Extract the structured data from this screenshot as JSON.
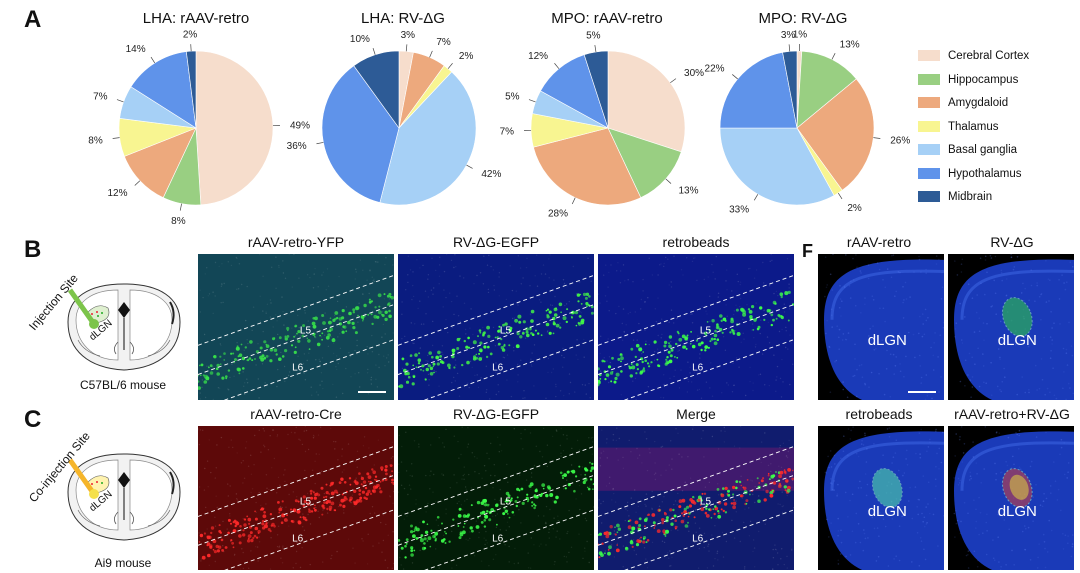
{
  "panel_letters": {
    "a": "A",
    "b": "B",
    "c": "C",
    "f": "F"
  },
  "chart_data": [
    {
      "type": "pie",
      "title": "LHA: rAAV-retro",
      "categories": [
        "Cerebral Cortex",
        "Hippocampus",
        "Amygdaloid",
        "Thalamus",
        "Basal ganglia",
        "Hypothalamus",
        "Midbrain"
      ],
      "values": [
        49,
        8,
        12,
        8,
        7,
        14,
        2
      ],
      "labels": [
        "49%",
        "8%",
        "12%",
        "8%",
        "7%",
        "14%",
        "2%"
      ]
    },
    {
      "type": "pie",
      "title": "LHA: RV-ΔG",
      "categories": [
        "Cerebral Cortex",
        "Amygdaloid",
        "Thalamus",
        "Basal ganglia",
        "Hypothalamus",
        "Midbrain"
      ],
      "values": [
        3,
        7,
        2,
        42,
        36,
        10
      ],
      "labels": [
        "3%",
        "7%",
        "2%",
        "42%",
        "36%",
        "10%"
      ]
    },
    {
      "type": "pie",
      "title": "MPO: rAAV-retro",
      "categories": [
        "Cerebral Cortex",
        "Hippocampus",
        "Amygdaloid",
        "Thalamus",
        "Basal ganglia",
        "Hypothalamus",
        "Midbrain"
      ],
      "values": [
        30,
        13,
        28,
        7,
        5,
        12,
        5
      ],
      "labels": [
        "30%",
        "13%",
        "28%",
        "7%",
        "5%",
        "12%",
        "5%"
      ]
    },
    {
      "type": "pie",
      "title": "MPO: RV-ΔG",
      "categories": [
        "Cerebral Cortex",
        "Hippocampus",
        "Amygdaloid",
        "Thalamus",
        "Basal ganglia",
        "Hypothalamus",
        "Midbrain"
      ],
      "values": [
        1,
        13,
        26,
        2,
        33,
        22,
        3
      ],
      "labels": [
        "1%",
        "13%",
        "26%",
        "2%",
        "33%",
        "22%",
        "3%"
      ]
    }
  ],
  "legend": {
    "items": [
      {
        "label": "Cerebral Cortex",
        "color": "#f6ddcc"
      },
      {
        "label": "Hippocampus",
        "color": "#99cf82"
      },
      {
        "label": "Amygdaloid",
        "color": "#eda97d"
      },
      {
        "label": "Thalamus",
        "color": "#f8f591"
      },
      {
        "label": "Basal ganglia",
        "color": "#a6d0f6"
      },
      {
        "label": "Hypothalamus",
        "color": "#5f93ea"
      },
      {
        "label": "Midbrain",
        "color": "#2d5b96"
      }
    ]
  },
  "panel_b": {
    "schematic": {
      "site_label": "Injection Site",
      "region": "dLGN",
      "mouse": "C57BL/6 mouse"
    },
    "images": [
      {
        "title": "rAAV-retro-YFP",
        "layer_top": "L5",
        "layer_bottom": "L6"
      },
      {
        "title": "RV-ΔG-EGFP",
        "layer_top": "L5",
        "layer_bottom": "L6"
      },
      {
        "title": "retrobeads",
        "layer_top": "L5",
        "layer_bottom": "L6"
      }
    ]
  },
  "panel_c": {
    "schematic": {
      "site_label": "Co-injection Site",
      "region": "dLGN",
      "mouse": "Ai9 mouse"
    },
    "images": [
      {
        "title": "rAAV-retro-Cre",
        "layer_top": "L5",
        "layer_bottom": "L6"
      },
      {
        "title": "RV-ΔG-EGFP",
        "layer_top": "L5",
        "layer_bottom": "L6"
      },
      {
        "title": "Merge",
        "layer_top": "L5",
        "layer_bottom": "L6"
      }
    ]
  },
  "panel_f": {
    "images": [
      {
        "title": "rAAV-retro",
        "region": "dLGN"
      },
      {
        "title": "RV-ΔG",
        "region": "dLGN"
      },
      {
        "title": "retrobeads",
        "region": "dLGN"
      },
      {
        "title": "rAAV-retro+RV-ΔG",
        "region": "dLGN"
      }
    ]
  }
}
